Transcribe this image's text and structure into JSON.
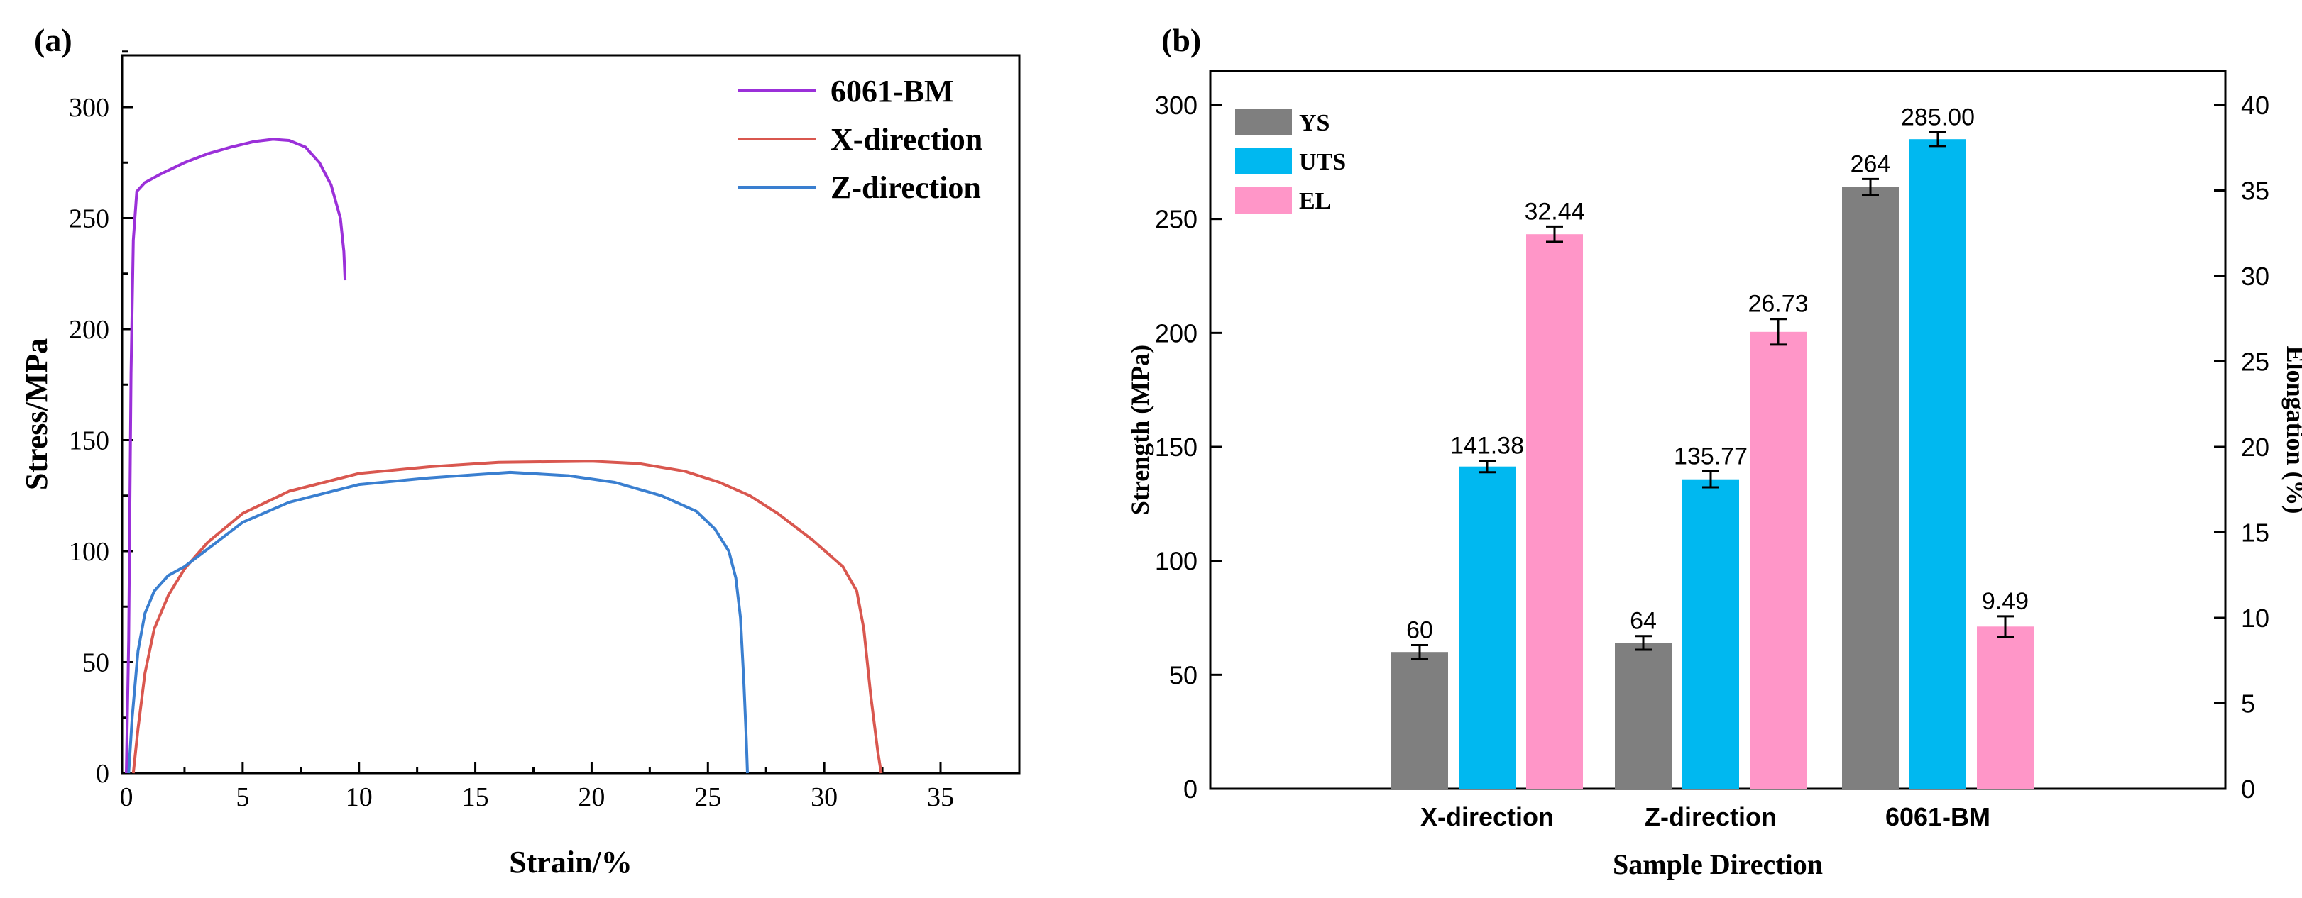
{
  "colors": {
    "axis": "#000000",
    "bm": "#9b30d9",
    "x_dir": "#d9574f",
    "z_dir": "#3a7fd0",
    "ys": "#7f7f7f",
    "uts": "#00b8f0",
    "el": "#ff96c8"
  },
  "chart_data": [
    {
      "panel_label": "(a)",
      "type": "line",
      "xlabel": "Strain/%",
      "ylabel": "Stress/MPa",
      "xlim": [
        0,
        37.5
      ],
      "ylim": [
        0,
        325
      ],
      "xticks": [
        0,
        5,
        10,
        15,
        20,
        25,
        30,
        35
      ],
      "yticks": [
        0,
        50,
        100,
        150,
        200,
        250,
        300
      ],
      "series": [
        {
          "name": "6061-BM",
          "color": "#9b30d9",
          "points": [
            [
              0,
              0
            ],
            [
              0.1,
              60
            ],
            [
              0.2,
              180
            ],
            [
              0.3,
              240
            ],
            [
              0.45,
              262
            ],
            [
              0.8,
              266
            ],
            [
              1.5,
              270
            ],
            [
              2.5,
              275
            ],
            [
              3.5,
              279
            ],
            [
              4.5,
              282
            ],
            [
              5.5,
              284.5
            ],
            [
              6.3,
              285.5
            ],
            [
              7,
              285
            ],
            [
              7.7,
              282
            ],
            [
              8.3,
              275
            ],
            [
              8.8,
              265
            ],
            [
              9.2,
              250
            ],
            [
              9.35,
              235
            ],
            [
              9.4,
              222
            ]
          ]
        },
        {
          "name": "X-direction",
          "color": "#d9574f",
          "points": [
            [
              0.3,
              0
            ],
            [
              0.5,
              20
            ],
            [
              0.8,
              45
            ],
            [
              1.2,
              65
            ],
            [
              1.8,
              80
            ],
            [
              2.5,
              92
            ],
            [
              3.5,
              104
            ],
            [
              5,
              117
            ],
            [
              7,
              127
            ],
            [
              10,
              135
            ],
            [
              13,
              138
            ],
            [
              16,
              140
            ],
            [
              20,
              140.5
            ],
            [
              22,
              139.5
            ],
            [
              24,
              136
            ],
            [
              25.5,
              131
            ],
            [
              26.8,
              125
            ],
            [
              28,
              117
            ],
            [
              29.5,
              105
            ],
            [
              30.8,
              93
            ],
            [
              31.4,
              82
            ],
            [
              31.7,
              65
            ],
            [
              32,
              35
            ],
            [
              32.3,
              10
            ],
            [
              32.45,
              0
            ]
          ]
        },
        {
          "name": "Z-direction",
          "color": "#3a7fd0",
          "points": [
            [
              0.1,
              0
            ],
            [
              0.25,
              25
            ],
            [
              0.5,
              55
            ],
            [
              0.8,
              72
            ],
            [
              1.2,
              82
            ],
            [
              1.8,
              89
            ],
            [
              2.5,
              93
            ],
            [
              3.5,
              101
            ],
            [
              5,
              113
            ],
            [
              7,
              122
            ],
            [
              10,
              130
            ],
            [
              13,
              133
            ],
            [
              16.5,
              135.5
            ],
            [
              19,
              134
            ],
            [
              21,
              131
            ],
            [
              23,
              125
            ],
            [
              24.5,
              118
            ],
            [
              25.3,
              110
            ],
            [
              25.9,
              100
            ],
            [
              26.2,
              88
            ],
            [
              26.4,
              70
            ],
            [
              26.55,
              40
            ],
            [
              26.65,
              15
            ],
            [
              26.7,
              0
            ]
          ]
        }
      ]
    },
    {
      "panel_label": "(b)",
      "type": "bar",
      "xlabel": "Sample Direction",
      "ylabel": "Strength (MPa)",
      "ylabel_right": "Elongation (%)",
      "ylim": [
        0,
        300
      ],
      "ylim_right": [
        0,
        40
      ],
      "yticks": [
        0,
        50,
        100,
        150,
        200,
        250,
        300
      ],
      "yticks_right": [
        0,
        5,
        10,
        15,
        20,
        25,
        30,
        35,
        40
      ],
      "categories": [
        "X-direction",
        "Z-direction",
        "6061-BM"
      ],
      "series": [
        {
          "name": "YS",
          "axis": "left",
          "color": "#7f7f7f",
          "values": [
            60,
            64,
            264
          ],
          "errors": [
            3,
            3,
            3.5
          ],
          "labels": [
            "60",
            "64",
            "264"
          ]
        },
        {
          "name": "UTS",
          "axis": "left",
          "color": "#00b8f0",
          "values": [
            141.38,
            135.77,
            285.0
          ],
          "errors": [
            2.5,
            3.5,
            3
          ],
          "labels": [
            "141.38",
            "135.77",
            "285.00"
          ]
        },
        {
          "name": "EL",
          "axis": "right",
          "color": "#ff96c8",
          "values": [
            32.44,
            26.73,
            9.49
          ],
          "errors": [
            0.45,
            0.75,
            0.6
          ],
          "labels": [
            "32.44",
            "26.73",
            "9.49"
          ]
        }
      ]
    }
  ]
}
